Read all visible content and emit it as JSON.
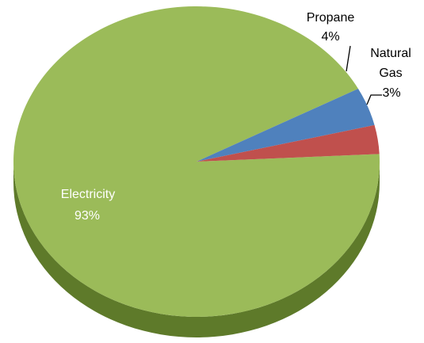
{
  "chart_data": {
    "type": "pie",
    "style": "3d",
    "title": "",
    "legend": "none",
    "slices": [
      {
        "label": "Electricity",
        "value": 93,
        "display": "93%",
        "color": "#9BBB59",
        "side_color": "#5E7A2A",
        "label_color": "#ffffff"
      },
      {
        "label": "Propane",
        "value": 4,
        "display": "4%",
        "color": "#4F81BD",
        "side_color": "#2F5283",
        "label_color": "#000000"
      },
      {
        "label": "Natural Gas",
        "value": 3,
        "display": "3%",
        "color": "#C0504D",
        "side_color": "#7F2F2C",
        "label_color": "#000000"
      }
    ]
  },
  "labels": {
    "electricity_name": "Electricity",
    "electricity_pct": "93%",
    "propane_name": "Propane",
    "propane_pct": "4%",
    "natgas_name_1": "Natural",
    "natgas_name_2": "Gas",
    "natgas_pct": "3%"
  }
}
